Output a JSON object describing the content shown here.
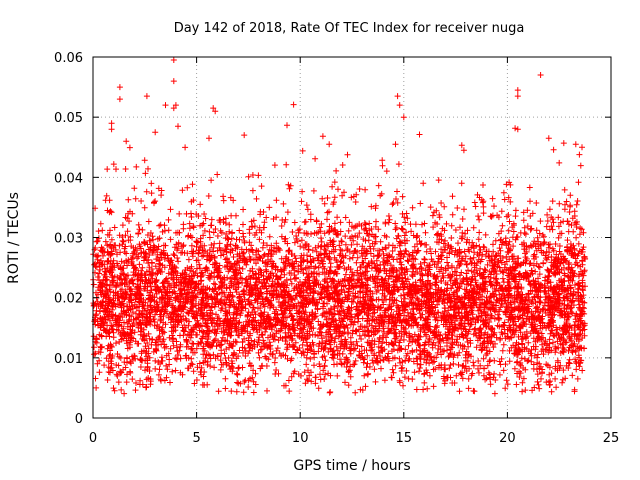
{
  "chart_data": {
    "type": "scatter",
    "title": "Day 142 of 2018, Rate Of TEC Index for receiver nuga",
    "xlabel": "GPS time / hours",
    "ylabel": "ROTI / TECUs",
    "xlim": [
      0,
      25
    ],
    "ylim": [
      0,
      0.06
    ],
    "xticks": [
      0,
      5,
      10,
      15,
      20,
      25
    ],
    "yticks": [
      0,
      0.01,
      0.02,
      0.03,
      0.04,
      0.05,
      0.06
    ],
    "xtick_labels": [
      "0",
      "5",
      "10",
      "15",
      "20",
      "25"
    ],
    "ytick_labels": [
      "0",
      "0.01",
      "0.02",
      "0.03",
      "0.04",
      "0.05",
      "0.06"
    ],
    "grid": true,
    "legend": "none",
    "marker": "+",
    "color": "#ff0000",
    "series_description_points_min_max": {
      "x_range_hours": [
        0,
        23.75
      ],
      "typical_band": [
        0.01,
        0.03
      ]
    },
    "outliers": [
      {
        "x": 3.9,
        "y": 0.0595
      },
      {
        "x": 3.9,
        "y": 0.056
      },
      {
        "x": 1.3,
        "y": 0.055
      },
      {
        "x": 1.3,
        "y": 0.053
      },
      {
        "x": 2.6,
        "y": 0.0535
      },
      {
        "x": 3.5,
        "y": 0.052
      },
      {
        "x": 3.9,
        "y": 0.0515
      },
      {
        "x": 4.0,
        "y": 0.052
      },
      {
        "x": 5.8,
        "y": 0.0515
      },
      {
        "x": 5.9,
        "y": 0.051
      },
      {
        "x": 14.7,
        "y": 0.0535
      },
      {
        "x": 14.8,
        "y": 0.052
      },
      {
        "x": 15.0,
        "y": 0.05
      },
      {
        "x": 21.6,
        "y": 0.057
      },
      {
        "x": 20.5,
        "y": 0.0545
      },
      {
        "x": 20.5,
        "y": 0.0535
      },
      {
        "x": 0.9,
        "y": 0.049
      },
      {
        "x": 0.9,
        "y": 0.048
      },
      {
        "x": 1.6,
        "y": 0.046
      },
      {
        "x": 3.0,
        "y": 0.0475
      },
      {
        "x": 4.1,
        "y": 0.0485
      },
      {
        "x": 5.6,
        "y": 0.0465
      },
      {
        "x": 20.5,
        "y": 0.048
      },
      {
        "x": 22.0,
        "y": 0.0465
      },
      {
        "x": 14.6,
        "y": 0.0455
      },
      {
        "x": 11.4,
        "y": 0.0455
      },
      {
        "x": 17.9,
        "y": 0.0445
      },
      {
        "x": 23.3,
        "y": 0.0455
      },
      {
        "x": 23.6,
        "y": 0.045
      },
      {
        "x": 0.15,
        "y": 0.005
      },
      {
        "x": 5.3,
        "y": 0.0055
      },
      {
        "x": 8.4,
        "y": 0.0045
      },
      {
        "x": 21.5,
        "y": 0.0055
      },
      {
        "x": 22.3,
        "y": 0.0065
      },
      {
        "x": 23.4,
        "y": 0.0065
      },
      {
        "x": 7.3,
        "y": 0.006
      },
      {
        "x": 1.8,
        "y": 0.0075
      }
    ]
  }
}
